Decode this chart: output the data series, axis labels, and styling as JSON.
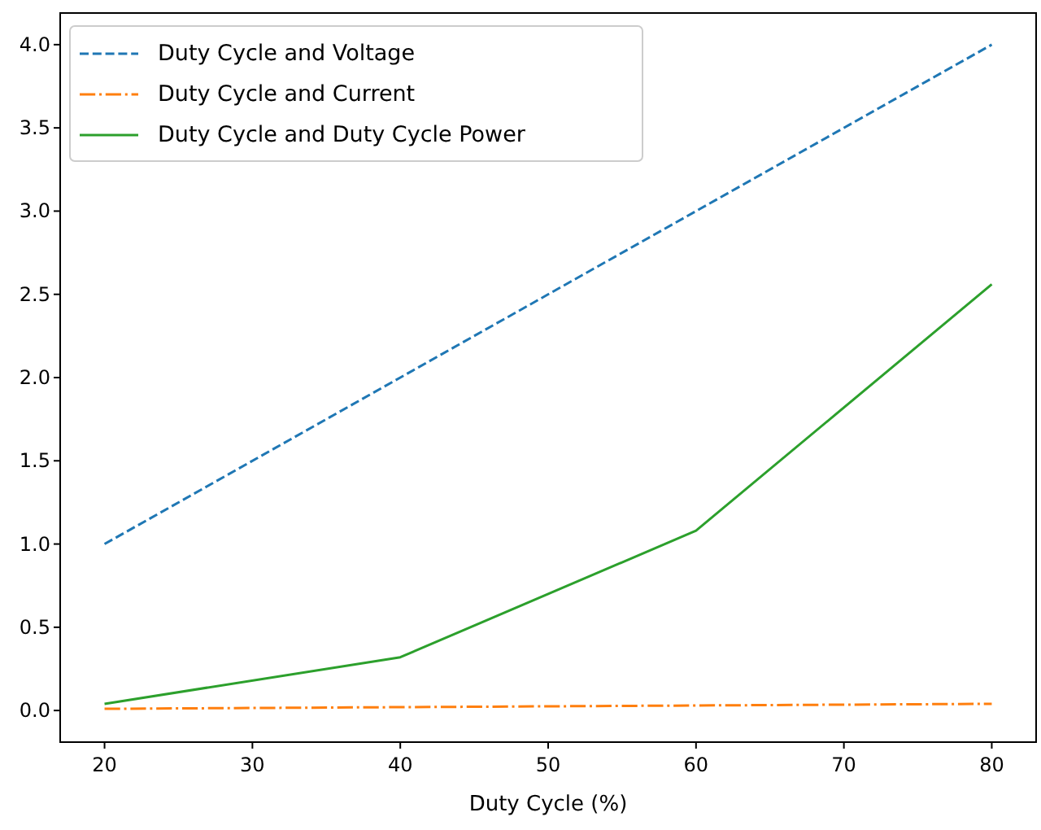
{
  "chart_data": {
    "type": "line",
    "xlabel": "Duty Cycle (%)",
    "x": [
      20,
      40,
      60,
      80
    ],
    "series": [
      {
        "name": "Duty Cycle and Voltage",
        "color": "#1f77b4",
        "line_style": "dashed",
        "values": [
          1.0,
          2.0,
          3.0,
          4.0
        ]
      },
      {
        "name": "Duty Cycle and Current",
        "color": "#ff7f0e",
        "line_style": "dashdot",
        "values": [
          0.01,
          0.02,
          0.03,
          0.04
        ]
      },
      {
        "name": "Duty Cycle and Duty Cycle Power",
        "color": "#2ca02c",
        "line_style": "solid",
        "values": [
          0.04,
          0.32,
          1.08,
          2.56
        ]
      }
    ],
    "xlim": [
      17,
      83
    ],
    "xticks": [
      20,
      30,
      40,
      50,
      60,
      70,
      80
    ],
    "ylim": [
      -0.19,
      4.19
    ],
    "yticks": [
      {
        "value": 0,
        "label": "0.0"
      },
      {
        "value": 0.5,
        "label": "0.5"
      },
      {
        "value": 1,
        "label": "1.0"
      },
      {
        "value": 1.5,
        "label": "1.5"
      },
      {
        "value": 2,
        "label": "2.0"
      },
      {
        "value": 2.5,
        "label": "2.5"
      },
      {
        "value": 3,
        "label": "3.0"
      },
      {
        "value": 3.5,
        "label": "3.5"
      },
      {
        "value": 4,
        "label": "4.0"
      }
    ],
    "grid": false,
    "legend": "top left",
    "marker": "none"
  }
}
